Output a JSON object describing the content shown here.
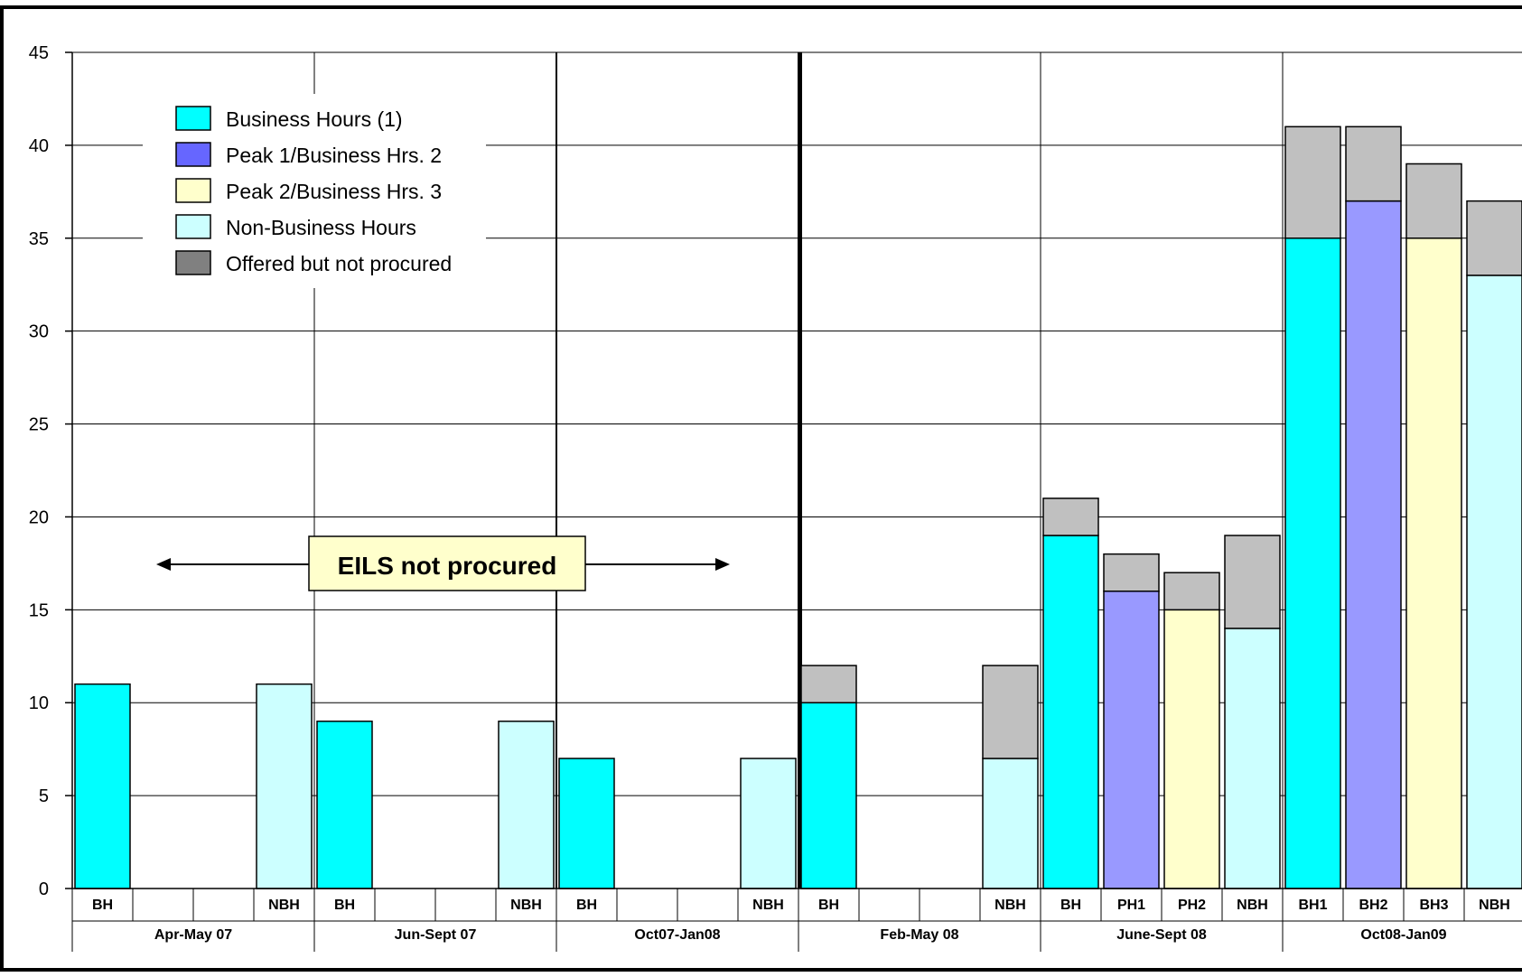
{
  "chart_data": {
    "type": "bar",
    "stacked": true,
    "title": "",
    "xlabel": "",
    "ylabel": "",
    "ylim": [
      0,
      45
    ],
    "yticks": [
      0,
      5,
      10,
      15,
      20,
      25,
      30,
      35,
      40,
      45
    ],
    "grid": true,
    "legend_position": "top-left",
    "groups": [
      {
        "label": "Apr-May 07",
        "categories": [
          "BH",
          "",
          "",
          "NBH"
        ]
      },
      {
        "label": "Jun-Sept 07",
        "categories": [
          "BH",
          "",
          "",
          "NBH"
        ]
      },
      {
        "label": "Oct07-Jan08",
        "categories": [
          "BH",
          "",
          "",
          "NBH"
        ]
      },
      {
        "label": "Feb-May 08",
        "categories": [
          "BH",
          "",
          "",
          "NBH"
        ]
      },
      {
        "label": "June-Sept 08",
        "categories": [
          "BH",
          "PH1",
          "PH2",
          "NBH"
        ]
      },
      {
        "label": "Oct08-Jan09",
        "categories": [
          "BH1",
          "BH2",
          "BH3",
          "NBH"
        ]
      }
    ],
    "series": [
      {
        "name": "Business Hours (1)",
        "color": "#00ffff",
        "values": [
          11,
          0,
          0,
          0,
          9,
          0,
          0,
          0,
          7,
          0,
          0,
          0,
          10,
          0,
          0,
          0,
          19,
          0,
          0,
          0,
          35,
          0,
          0,
          0
        ]
      },
      {
        "name": "Peak 1/Business Hrs. 2",
        "color": "#9999ff",
        "legend_color": "#6666ff",
        "values": [
          0,
          0,
          0,
          0,
          0,
          0,
          0,
          0,
          0,
          0,
          0,
          0,
          0,
          0,
          0,
          0,
          0,
          16,
          0,
          0,
          0,
          37,
          0,
          0
        ]
      },
      {
        "name": "Peak 2/Business Hrs. 3",
        "color": "#ffffcc",
        "values": [
          0,
          0,
          0,
          0,
          0,
          0,
          0,
          0,
          0,
          0,
          0,
          0,
          0,
          0,
          0,
          0,
          0,
          0,
          15,
          0,
          0,
          0,
          35,
          0
        ]
      },
      {
        "name": "Non-Business Hours",
        "color": "#ccffff",
        "values": [
          0,
          0,
          0,
          11,
          0,
          0,
          0,
          9,
          0,
          0,
          0,
          7,
          0,
          0,
          0,
          7,
          0,
          0,
          0,
          14,
          0,
          0,
          0,
          33
        ]
      },
      {
        "name": "Offered but not procured",
        "color": "#c0c0c0",
        "legend_color": "#808080",
        "values": [
          0,
          0,
          0,
          0,
          0,
          0,
          0,
          0,
          0,
          0,
          0,
          0,
          2,
          0,
          0,
          5,
          2,
          2,
          2,
          5,
          6,
          4,
          4,
          4
        ]
      }
    ],
    "annotation": {
      "text": "EILS not procured",
      "spans_groups": [
        "Apr-May 07",
        "Jun-Sept 07",
        "Oct07-Jan08"
      ]
    }
  }
}
